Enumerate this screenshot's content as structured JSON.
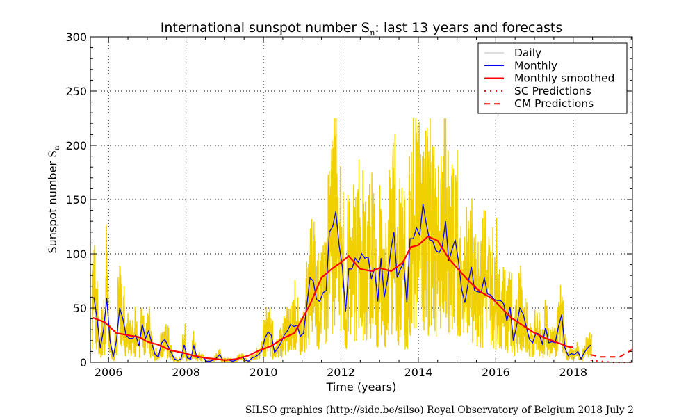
{
  "chart_data": {
    "type": "line",
    "title": {
      "prefix": "International sunspot number ",
      "symbol": "S",
      "subscript": "n",
      "suffix": ": last 13 years and forecasts"
    },
    "xlabel": "Time (years)",
    "ylabel": {
      "prefix": "Sunspot number ",
      "symbol": "S",
      "subscript": "n"
    },
    "xlim": [
      2005.53,
      2019.53
    ],
    "ylim": [
      0,
      300
    ],
    "xticks": [
      2006,
      2008,
      2010,
      2012,
      2014,
      2016,
      2018
    ],
    "yticks": [
      0,
      50,
      100,
      150,
      200,
      250,
      300
    ],
    "grid": true,
    "legend_position": "top-right",
    "legend": [
      "Daily",
      "Monthly",
      "Monthly smoothed",
      "SC Predictions",
      "CM Predictions"
    ],
    "colors": {
      "daily": "#f0d000",
      "daily_legend": "#bbbbbb",
      "monthly": "#0000ff",
      "smoothed": "#ff0000",
      "predictions": "#ff0000"
    },
    "monthly": {
      "start": 2005.62,
      "step_months": 1,
      "values": [
        60,
        40,
        13,
        30,
        59,
        20,
        5,
        20,
        50,
        40,
        25,
        22,
        22,
        25,
        15,
        35,
        22,
        29,
        17,
        7,
        5,
        18,
        21,
        15,
        9,
        3,
        2,
        3,
        16,
        4,
        3,
        15,
        4,
        5,
        4,
        1,
        1,
        2,
        4,
        7,
        2,
        2,
        2,
        1,
        2,
        4,
        5,
        2,
        1,
        4,
        5,
        7,
        10,
        22,
        28,
        25,
        9,
        13,
        18,
        25,
        29,
        35,
        33,
        34,
        24,
        27,
        52,
        78,
        75,
        58,
        56,
        64,
        66,
        120,
        125,
        139,
        108,
        88,
        47,
        86,
        86,
        96,
        92,
        100,
        96,
        97,
        77,
        87,
        56,
        96,
        60,
        76,
        103,
        120,
        78,
        86,
        92,
        55,
        114,
        114,
        124,
        117,
        146,
        128,
        113,
        112,
        103,
        101,
        107,
        130,
        93,
        104,
        113,
        93,
        67,
        55,
        73,
        88,
        66,
        65,
        64,
        78,
        63,
        62,
        58,
        57,
        57,
        54,
        38,
        51,
        20,
        33,
        50,
        45,
        33,
        21,
        18,
        27,
        26,
        17,
        32,
        18,
        19,
        18,
        33,
        44,
        13,
        6,
        8,
        7,
        10,
        3,
        9,
        13,
        16
      ]
    },
    "smoothed": [
      [
        2005.6,
        41
      ],
      [
        2005.9,
        37
      ],
      [
        2006.2,
        27
      ],
      [
        2006.5,
        25
      ],
      [
        2006.8,
        23
      ],
      [
        2007.0,
        19
      ],
      [
        2007.3,
        16
      ],
      [
        2007.6,
        11
      ],
      [
        2007.9,
        9
      ],
      [
        2008.2,
        6
      ],
      [
        2008.5,
        4
      ],
      [
        2008.8,
        3
      ],
      [
        2009.0,
        2
      ],
      [
        2009.3,
        3
      ],
      [
        2009.6,
        6
      ],
      [
        2009.9,
        11
      ],
      [
        2010.2,
        15
      ],
      [
        2010.5,
        22
      ],
      [
        2010.8,
        27
      ],
      [
        2011.0,
        40
      ],
      [
        2011.2,
        53
      ],
      [
        2011.5,
        78
      ],
      [
        2011.8,
        87
      ],
      [
        2012.0,
        92
      ],
      [
        2012.2,
        98
      ],
      [
        2012.5,
        86
      ],
      [
        2012.8,
        84
      ],
      [
        2013.0,
        87
      ],
      [
        2013.3,
        84
      ],
      [
        2013.6,
        92
      ],
      [
        2013.8,
        106
      ],
      [
        2014.0,
        108
      ],
      [
        2014.25,
        116
      ],
      [
        2014.5,
        112
      ],
      [
        2014.8,
        95
      ],
      [
        2015.0,
        87
      ],
      [
        2015.3,
        75
      ],
      [
        2015.6,
        65
      ],
      [
        2015.9,
        59
      ],
      [
        2016.1,
        52
      ],
      [
        2016.4,
        41
      ],
      [
        2016.7,
        34
      ],
      [
        2017.0,
        27
      ],
      [
        2017.3,
        22
      ],
      [
        2017.6,
        18
      ],
      [
        2017.9,
        14
      ],
      [
        2018.0,
        14
      ]
    ],
    "sc_predictions": [
      [
        2018.45,
        2
      ],
      [
        2018.7,
        1
      ],
      [
        2019.0,
        0
      ],
      [
        2019.3,
        0
      ],
      [
        2019.53,
        0
      ]
    ],
    "cm_predictions": [
      [
        2018.45,
        7
      ],
      [
        2018.7,
        5
      ],
      [
        2019.0,
        5
      ],
      [
        2019.2,
        5
      ],
      [
        2019.4,
        9
      ],
      [
        2019.53,
        12
      ]
    ]
  },
  "footer": "SILSO graphics (http://sidc.be/silso)  Royal Observatory of Belgium  2018 July 2"
}
